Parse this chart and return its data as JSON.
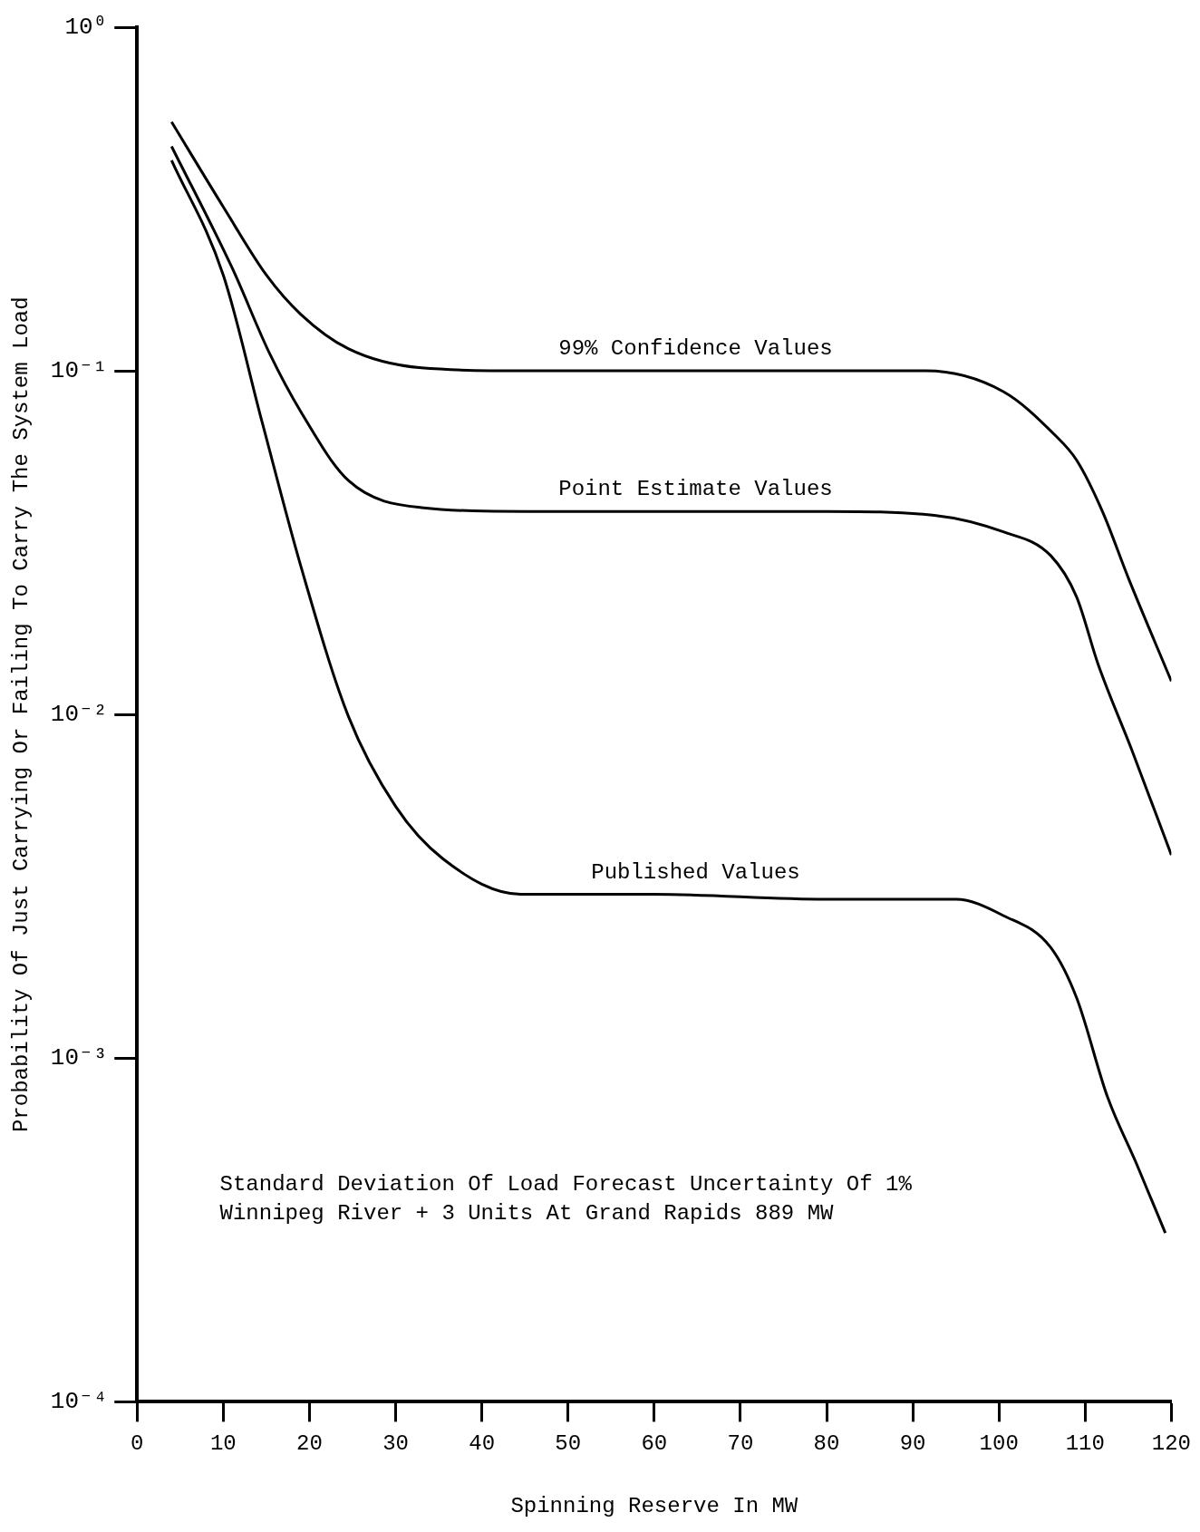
{
  "chart_data": {
    "type": "line",
    "xlabel": "Spinning Reserve In MW",
    "ylabel": "Probability Of Just Carrying Or Failing To Carry The System Load",
    "log": "y",
    "xlim": [
      0,
      120
    ],
    "xticks": [
      0,
      10,
      20,
      30,
      40,
      50,
      60,
      70,
      80,
      90,
      100,
      110,
      120
    ],
    "ylim": [
      0.0001,
      1
    ],
    "yticks": [
      {
        "value": 0.0001,
        "label": "10⁻⁴"
      },
      {
        "value": 0.001,
        "label": "10⁻³"
      },
      {
        "value": 0.01,
        "label": "10⁻²"
      },
      {
        "value": 0.1,
        "label": "10⁻¹"
      },
      {
        "value": 1,
        "label": "10⁰"
      }
    ],
    "grid": false,
    "legend": false,
    "marker": "none",
    "line_style": "solid",
    "series": [
      {
        "name": "99% Confidence Values",
        "color": "#000000",
        "x": [
          4,
          10,
          15,
          19,
          24.5,
          33,
          45,
          60,
          80,
          91.5,
          100.5,
          106.5,
          109,
          112,
          115,
          120
        ],
        "values": [
          0.53,
          0.3,
          0.19,
          0.146,
          0.116,
          0.102,
          0.1,
          0.1,
          0.1,
          0.1,
          0.087,
          0.065,
          0.055,
          0.039,
          0.025,
          0.0125
        ]
      },
      {
        "name": "Point Estimate Values",
        "color": "#000000",
        "x": [
          4,
          11,
          15.4,
          19,
          24.5,
          33,
          45,
          60,
          80,
          92.5,
          100.5,
          106,
          109,
          111.5,
          115.4,
          120
        ],
        "values": [
          0.45,
          0.2,
          0.112,
          0.076,
          0.048,
          0.04,
          0.039,
          0.039,
          0.039,
          0.038,
          0.034,
          0.029,
          0.022,
          0.014,
          0.0079,
          0.0039
        ]
      },
      {
        "name": "Published Values",
        "color": "#000000",
        "x": [
          4,
          10,
          14.5,
          19,
          24.5,
          30,
          35.5,
          44.5,
          60,
          80,
          95,
          100.5,
          106,
          109,
          112.6,
          116,
          119.3
        ],
        "values": [
          0.41,
          0.19,
          0.071,
          0.027,
          0.0099,
          0.0054,
          0.0038,
          0.003,
          0.003,
          0.0029,
          0.0029,
          0.0026,
          0.0021,
          0.0015,
          0.00077,
          0.00049,
          0.00031
        ]
      }
    ],
    "annotations": [
      "Standard Deviation Of Load Forecast Uncertainty Of 1%",
      "Winnipeg River + 3 Units At Grand Rapids 889 MW"
    ]
  }
}
